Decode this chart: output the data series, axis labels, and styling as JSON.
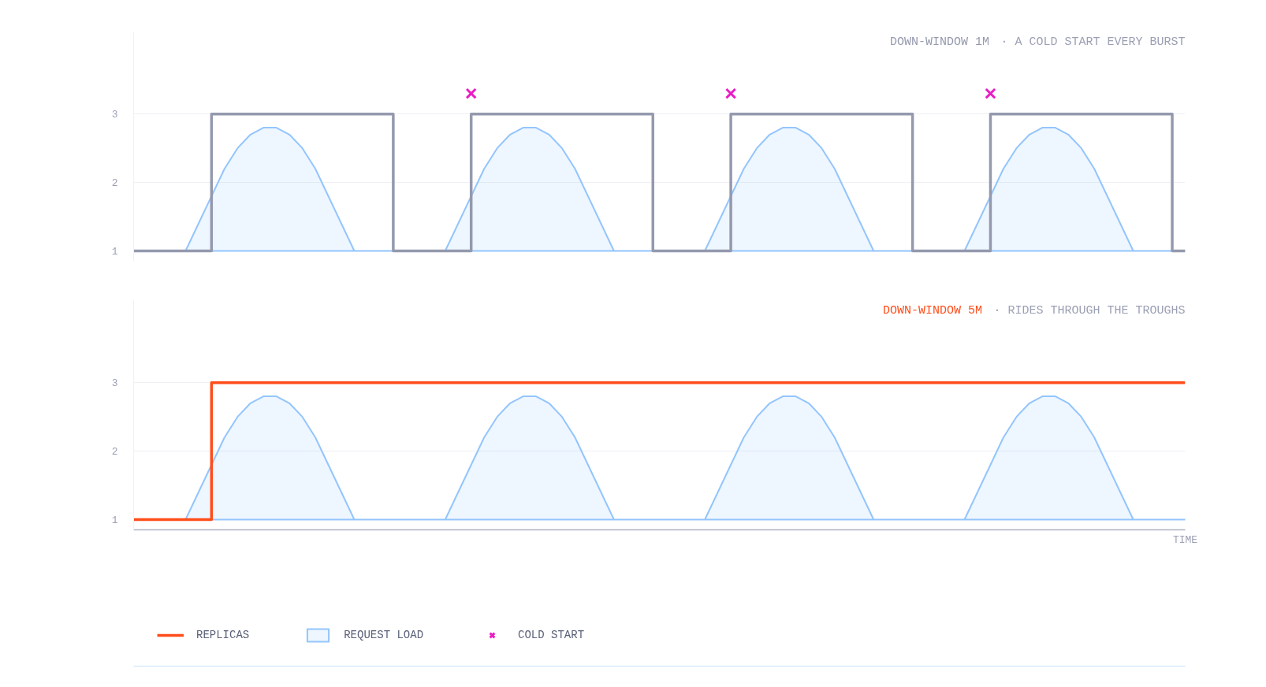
{
  "chart_data": [
    {
      "type": "step",
      "title": "DOWN-WINDOW 1M",
      "subtitle": "· A COLD START EVERY BURST",
      "categories": [
        null,
        null,
        null,
        null,
        null,
        null,
        null,
        null,
        null,
        null,
        null,
        null,
        null,
        null,
        null,
        null,
        null,
        null,
        null,
        null,
        null,
        null,
        null,
        null,
        null,
        null,
        null,
        null,
        null,
        null,
        null,
        null,
        null,
        null,
        null,
        null,
        null,
        null,
        null,
        null,
        null,
        null,
        null,
        null,
        null,
        null,
        null,
        null,
        null,
        null,
        null,
        null,
        null,
        null,
        null,
        null,
        null,
        null,
        null,
        null,
        null,
        null,
        null,
        null,
        null,
        null,
        null,
        null,
        null,
        null,
        null,
        null,
        null,
        null,
        null,
        null,
        null,
        null,
        null,
        null,
        null,
        null
      ],
      "ylim": [
        0.85,
        4.2
      ],
      "yticks": [
        1,
        2,
        3
      ],
      "grid": "y",
      "tick_labels": "y",
      "series": [
        {
          "color": "#9499ad",
          "values": [
            1,
            1,
            1,
            1,
            1,
            1,
            3,
            3,
            3,
            3,
            3,
            3,
            3,
            3,
            3,
            3,
            3,
            3,
            3,
            3,
            1,
            1,
            1,
            1,
            1,
            1,
            3,
            3,
            3,
            3,
            3,
            3,
            3,
            3,
            3,
            3,
            3,
            3,
            3,
            3,
            1,
            1,
            1,
            1,
            1,
            1,
            3,
            3,
            3,
            3,
            3,
            3,
            3,
            3,
            3,
            3,
            3,
            3,
            3,
            3,
            1,
            1,
            1,
            1,
            1,
            1,
            3,
            3,
            3,
            3,
            3,
            3,
            3,
            3,
            3,
            3,
            3,
            3,
            3,
            3,
            1,
            1
          ]
        },
        {
          "type": "area",
          "color": "#93c5fd",
          "values": [
            1,
            1,
            1,
            1,
            1.0,
            1.4,
            1.8,
            2.2,
            2.5,
            2.7,
            2.8,
            2.8,
            2.7,
            2.5,
            2.2,
            1.8,
            1.4,
            1.0,
            1,
            1,
            1,
            1,
            1,
            1,
            1.0,
            1.4,
            1.8,
            2.2,
            2.5,
            2.7,
            2.8,
            2.8,
            2.7,
            2.5,
            2.2,
            1.8,
            1.4,
            1.0,
            1,
            1,
            1,
            1,
            1,
            1,
            1.0,
            1.4,
            1.8,
            2.2,
            2.5,
            2.7,
            2.8,
            2.8,
            2.7,
            2.5,
            2.2,
            1.8,
            1.4,
            1.0,
            1,
            1,
            1,
            1,
            1,
            1,
            1.0,
            1.4,
            1.8,
            2.2,
            2.5,
            2.7,
            2.8,
            2.8,
            2.7,
            2.5,
            2.2,
            1.8,
            1.4,
            1.0,
            1,
            1,
            1,
            1
          ]
        },
        {
          "type": "scatter",
          "marker": "cross",
          "color": "#e91ec4",
          "values": [
            null,
            null,
            null,
            null,
            null,
            null,
            null,
            null,
            null,
            null,
            null,
            null,
            null,
            null,
            null,
            null,
            null,
            null,
            null,
            null,
            null,
            null,
            null,
            null,
            null,
            null,
            3.3,
            null,
            null,
            null,
            null,
            null,
            null,
            null,
            null,
            null,
            null,
            null,
            null,
            null,
            null,
            null,
            null,
            null,
            null,
            null,
            3.3,
            null,
            null,
            null,
            null,
            null,
            null,
            null,
            null,
            null,
            null,
            null,
            null,
            null,
            null,
            null,
            null,
            null,
            null,
            null,
            3.3,
            null,
            null,
            null,
            null,
            null,
            null,
            null,
            null,
            null,
            null,
            null,
            null,
            null,
            null,
            null
          ]
        }
      ]
    },
    {
      "type": "step",
      "title": "DOWN-WINDOW 5M",
      "subtitle": "· RIDES THROUGH THE TROUGHS",
      "xlabel": "TIME",
      "categories": [
        null,
        null,
        null,
        null,
        null,
        null,
        null,
        null,
        null,
        null,
        null,
        null,
        null,
        null,
        null,
        null,
        null,
        null,
        null,
        null,
        null,
        null,
        null,
        null,
        null,
        null,
        null,
        null,
        null,
        null,
        null,
        null,
        null,
        null,
        null,
        null,
        null,
        null,
        null,
        null,
        null,
        null,
        null,
        null,
        null,
        null,
        null,
        null,
        null,
        null,
        null,
        null,
        null,
        null,
        null,
        null,
        null,
        null,
        null,
        null,
        null,
        null,
        null,
        null,
        null,
        null,
        null,
        null,
        null,
        null,
        null,
        null,
        null,
        null,
        null,
        null,
        null,
        null,
        null,
        null,
        null,
        null
      ],
      "ylim": [
        0.85,
        4.2
      ],
      "yticks": [
        1,
        2,
        3
      ],
      "grid": "y",
      "legend": "bottom",
      "tick_labels": "y",
      "series": [
        {
          "name": "REPLICAS",
          "color": "#ff4d1a",
          "values": [
            1,
            1,
            1,
            1,
            1,
            1,
            3,
            3,
            3,
            3,
            3,
            3,
            3,
            3,
            3,
            3,
            3,
            3,
            3,
            3,
            3,
            3,
            3,
            3,
            3,
            3,
            3,
            3,
            3,
            3,
            3,
            3,
            3,
            3,
            3,
            3,
            3,
            3,
            3,
            3,
            3,
            3,
            3,
            3,
            3,
            3,
            3,
            3,
            3,
            3,
            3,
            3,
            3,
            3,
            3,
            3,
            3,
            3,
            3,
            3,
            3,
            3,
            3,
            3,
            3,
            3,
            3,
            3,
            3,
            3,
            3,
            3,
            3,
            3,
            3,
            3,
            3,
            3,
            3,
            3,
            3,
            3
          ]
        },
        {
          "name": "REQUEST LOAD",
          "type": "area",
          "color": "#93c5fd",
          "values": [
            1,
            1,
            1,
            1,
            1.0,
            1.4,
            1.8,
            2.2,
            2.5,
            2.7,
            2.8,
            2.8,
            2.7,
            2.5,
            2.2,
            1.8,
            1.4,
            1.0,
            1,
            1,
            1,
            1,
            1,
            1,
            1.0,
            1.4,
            1.8,
            2.2,
            2.5,
            2.7,
            2.8,
            2.8,
            2.7,
            2.5,
            2.2,
            1.8,
            1.4,
            1.0,
            1,
            1,
            1,
            1,
            1,
            1,
            1.0,
            1.4,
            1.8,
            2.2,
            2.5,
            2.7,
            2.8,
            2.8,
            2.7,
            2.5,
            2.2,
            1.8,
            1.4,
            1.0,
            1,
            1,
            1,
            1,
            1,
            1,
            1.0,
            1.4,
            1.8,
            2.2,
            2.5,
            2.7,
            2.8,
            2.8,
            2.7,
            2.5,
            2.2,
            1.8,
            1.4,
            1.0,
            1,
            1,
            1,
            1
          ]
        },
        {
          "name": "COLD START",
          "type": "scatter",
          "marker": "cross",
          "color": "#e91ec4",
          "values": [
            null,
            null,
            null,
            null,
            null,
            null,
            null,
            null,
            null,
            null,
            null,
            null,
            null,
            null,
            null,
            null,
            null,
            null,
            null,
            null,
            null,
            null,
            null,
            null,
            null,
            null,
            null,
            null,
            null,
            null,
            null,
            null,
            null,
            null,
            null,
            null,
            null,
            null,
            null,
            null,
            null,
            null,
            null,
            null,
            null,
            null,
            null,
            null,
            null,
            null,
            null,
            null,
            null,
            null,
            null,
            null,
            null,
            null,
            null,
            null,
            null,
            null,
            null,
            null,
            null,
            null,
            null,
            null,
            null,
            null,
            null,
            null,
            null,
            null,
            null,
            null,
            null,
            null,
            null,
            null,
            null,
            null
          ]
        }
      ]
    }
  ]
}
